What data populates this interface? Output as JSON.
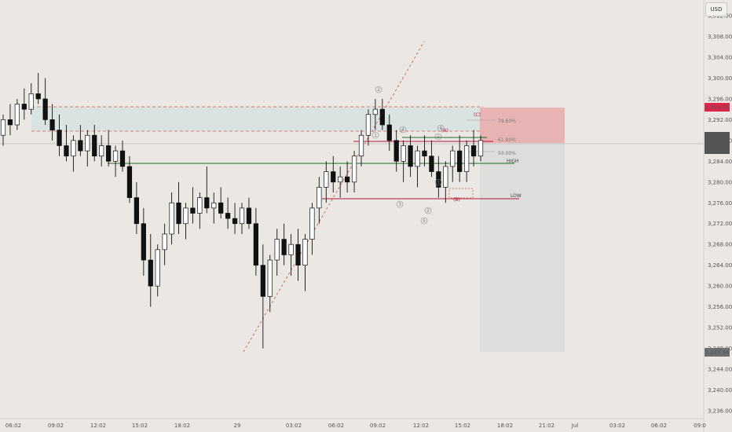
{
  "currency_button": "USD",
  "colors": {
    "background": "#ebe8e3",
    "candle_up": "#ffffff",
    "candle_down": "#111111",
    "support_green": "#1e6b2a",
    "resistance_red": "#b0193c",
    "trendline": "#d65a5a",
    "fib_text": "#777777",
    "stop_zone": "#e8aaaa",
    "target_zone": "#d9d9d9",
    "supply_zone": "#d7e2e0"
  },
  "axis": {
    "price_ticks": [
      "3,312.00",
      "3,308.00",
      "3,304.00",
      "3,300.00",
      "3,296.00",
      "3,292.00",
      "3,288.00",
      "3,284.00",
      "3,280.00",
      "3,276.00",
      "3,272.00",
      "3,268.00",
      "3,264.00",
      "3,260.00",
      "3,256.00",
      "3,252.00",
      "3,248.00",
      "3,244.00",
      "3,240.00",
      "3,236.00"
    ],
    "time_ticks": [
      "06:02",
      "09:02",
      "12:02",
      "15:02",
      "18:02",
      "29",
      "03:02",
      "06:02",
      "09:02",
      "12:02",
      "15:02",
      "18:02",
      "21:02",
      "Jul",
      "03:02",
      "06:02",
      "09:0"
    ]
  },
  "price_badges": {
    "stop": "3,294.35",
    "last_1": "3,287.87",
    "last_2": "3,287.59",
    "countdown": "04:33",
    "target": "3,247.54"
  },
  "annotations": {
    "fib_786": "78.60%",
    "fib_618": "61.80%",
    "fib_500": "50.00%",
    "high_label": "HIGH",
    "low_label": "LOW",
    "wave_C": "(C)",
    "wave_A": "(A)",
    "wave_B": "(B)",
    "waves": [
      "1",
      "2",
      "3",
      "4",
      "5",
      "1",
      "2",
      "3",
      "4",
      "5"
    ]
  },
  "chart_data": {
    "type": "candlestick",
    "ylim": [
      3234,
      3314
    ],
    "candles": [
      {
        "o": 3289,
        "h": 3293,
        "l": 3287,
        "c": 3292
      },
      {
        "o": 3292,
        "h": 3295,
        "l": 3289,
        "c": 3291
      },
      {
        "o": 3291,
        "h": 3296,
        "l": 3290,
        "c": 3295
      },
      {
        "o": 3295,
        "h": 3298,
        "l": 3292,
        "c": 3294
      },
      {
        "o": 3294,
        "h": 3299,
        "l": 3293,
        "c": 3297
      },
      {
        "o": 3297,
        "h": 3301,
        "l": 3295,
        "c": 3296
      },
      {
        "o": 3296,
        "h": 3300,
        "l": 3291,
        "c": 3292
      },
      {
        "o": 3292,
        "h": 3295,
        "l": 3288,
        "c": 3290
      },
      {
        "o": 3290,
        "h": 3293,
        "l": 3285,
        "c": 3287
      },
      {
        "o": 3287,
        "h": 3291,
        "l": 3284,
        "c": 3285
      },
      {
        "o": 3285,
        "h": 3289,
        "l": 3282,
        "c": 3288
      },
      {
        "o": 3288,
        "h": 3291,
        "l": 3285,
        "c": 3286
      },
      {
        "o": 3286,
        "h": 3290,
        "l": 3283,
        "c": 3289
      },
      {
        "o": 3289,
        "h": 3291,
        "l": 3284,
        "c": 3285
      },
      {
        "o": 3285,
        "h": 3289,
        "l": 3283,
        "c": 3287
      },
      {
        "o": 3287,
        "h": 3290,
        "l": 3283,
        "c": 3284
      },
      {
        "o": 3284,
        "h": 3287,
        "l": 3281,
        "c": 3286
      },
      {
        "o": 3286,
        "h": 3288,
        "l": 3282,
        "c": 3283
      },
      {
        "o": 3283,
        "h": 3285,
        "l": 3276,
        "c": 3277
      },
      {
        "o": 3277,
        "h": 3280,
        "l": 3270,
        "c": 3272
      },
      {
        "o": 3272,
        "h": 3275,
        "l": 3262,
        "c": 3265
      },
      {
        "o": 3265,
        "h": 3270,
        "l": 3256,
        "c": 3260
      },
      {
        "o": 3260,
        "h": 3268,
        "l": 3258,
        "c": 3267
      },
      {
        "o": 3267,
        "h": 3272,
        "l": 3264,
        "c": 3270
      },
      {
        "o": 3270,
        "h": 3278,
        "l": 3268,
        "c": 3276
      },
      {
        "o": 3276,
        "h": 3280,
        "l": 3270,
        "c": 3272
      },
      {
        "o": 3272,
        "h": 3276,
        "l": 3269,
        "c": 3275
      },
      {
        "o": 3275,
        "h": 3279,
        "l": 3272,
        "c": 3274
      },
      {
        "o": 3274,
        "h": 3278,
        "l": 3271,
        "c": 3277
      },
      {
        "o": 3277,
        "h": 3283,
        "l": 3274,
        "c": 3275
      },
      {
        "o": 3275,
        "h": 3278,
        "l": 3272,
        "c": 3276
      },
      {
        "o": 3276,
        "h": 3279,
        "l": 3273,
        "c": 3274
      },
      {
        "o": 3274,
        "h": 3277,
        "l": 3271,
        "c": 3273
      },
      {
        "o": 3273,
        "h": 3276,
        "l": 3270,
        "c": 3272
      },
      {
        "o": 3272,
        "h": 3276,
        "l": 3270,
        "c": 3275
      },
      {
        "o": 3275,
        "h": 3277,
        "l": 3271,
        "c": 3272
      },
      {
        "o": 3272,
        "h": 3275,
        "l": 3262,
        "c": 3264
      },
      {
        "o": 3264,
        "h": 3268,
        "l": 3248,
        "c": 3258
      },
      {
        "o": 3258,
        "h": 3266,
        "l": 3255,
        "c": 3265
      },
      {
        "o": 3265,
        "h": 3271,
        "l": 3262,
        "c": 3269
      },
      {
        "o": 3269,
        "h": 3272,
        "l": 3264,
        "c": 3266
      },
      {
        "o": 3266,
        "h": 3270,
        "l": 3262,
        "c": 3268
      },
      {
        "o": 3268,
        "h": 3271,
        "l": 3261,
        "c": 3264
      },
      {
        "o": 3264,
        "h": 3270,
        "l": 3259,
        "c": 3269
      },
      {
        "o": 3269,
        "h": 3276,
        "l": 3266,
        "c": 3275
      },
      {
        "o": 3275,
        "h": 3281,
        "l": 3272,
        "c": 3279
      },
      {
        "o": 3279,
        "h": 3284,
        "l": 3276,
        "c": 3282
      },
      {
        "o": 3282,
        "h": 3285,
        "l": 3278,
        "c": 3280
      },
      {
        "o": 3280,
        "h": 3283,
        "l": 3277,
        "c": 3281
      },
      {
        "o": 3281,
        "h": 3284,
        "l": 3278,
        "c": 3280
      },
      {
        "o": 3280,
        "h": 3286,
        "l": 3278,
        "c": 3285
      },
      {
        "o": 3285,
        "h": 3290,
        "l": 3283,
        "c": 3289
      },
      {
        "o": 3289,
        "h": 3294,
        "l": 3287,
        "c": 3293
      },
      {
        "o": 3293,
        "h": 3296,
        "l": 3290,
        "c": 3294
      },
      {
        "o": 3294,
        "h": 3296,
        "l": 3290,
        "c": 3291
      },
      {
        "o": 3291,
        "h": 3293,
        "l": 3286,
        "c": 3288
      },
      {
        "o": 3288,
        "h": 3290,
        "l": 3282,
        "c": 3284
      },
      {
        "o": 3284,
        "h": 3288,
        "l": 3280,
        "c": 3287
      },
      {
        "o": 3287,
        "h": 3289,
        "l": 3281,
        "c": 3283
      },
      {
        "o": 3283,
        "h": 3287,
        "l": 3279,
        "c": 3286
      },
      {
        "o": 3286,
        "h": 3289,
        "l": 3283,
        "c": 3285
      },
      {
        "o": 3285,
        "h": 3288,
        "l": 3281,
        "c": 3282
      },
      {
        "o": 3282,
        "h": 3285,
        "l": 3277,
        "c": 3279
      },
      {
        "o": 3279,
        "h": 3284,
        "l": 3276,
        "c": 3283
      },
      {
        "o": 3283,
        "h": 3287,
        "l": 3280,
        "c": 3286
      },
      {
        "o": 3286,
        "h": 3289,
        "l": 3280,
        "c": 3282
      },
      {
        "o": 3282,
        "h": 3288,
        "l": 3280,
        "c": 3287
      },
      {
        "o": 3287,
        "h": 3290,
        "l": 3283,
        "c": 3285
      },
      {
        "o": 3285,
        "h": 3289,
        "l": 3284,
        "c": 3288
      }
    ]
  }
}
